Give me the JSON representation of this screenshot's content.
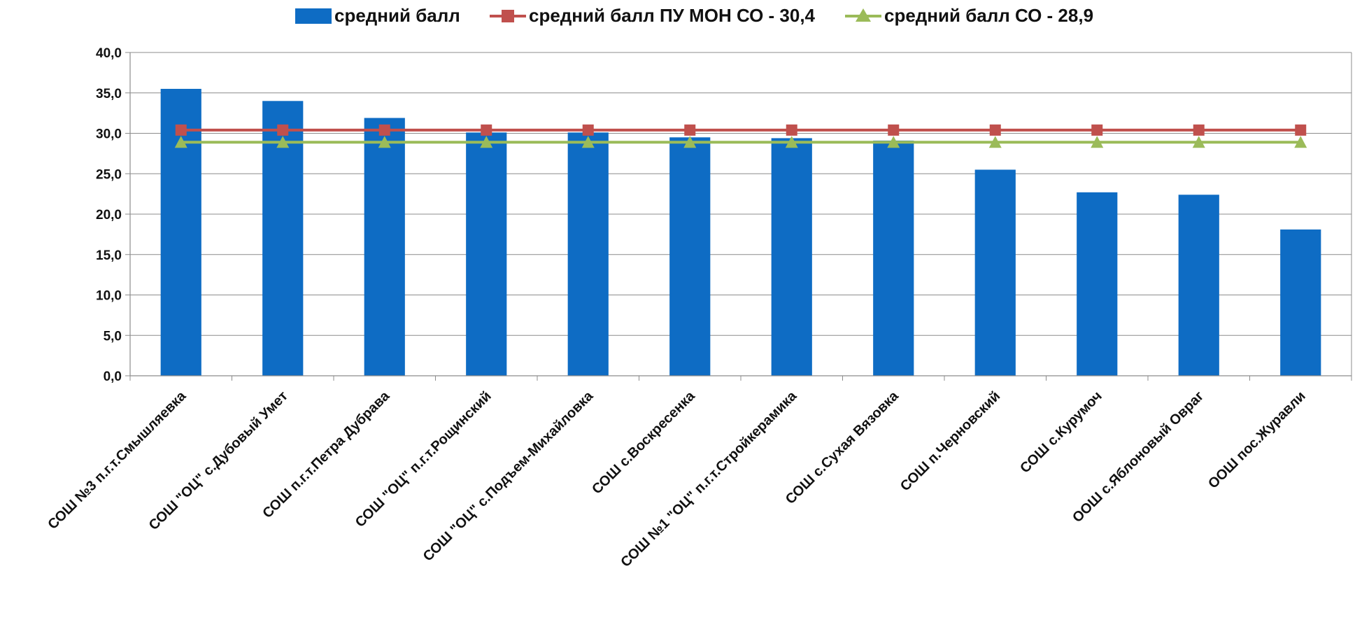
{
  "chart_data": {
    "type": "bar",
    "title": "",
    "xlabel": "",
    "ylabel": "",
    "ylim": [
      0,
      40
    ],
    "yticks": [
      "0,0",
      "5,0",
      "10,0",
      "15,0",
      "20,0",
      "25,0",
      "30,0",
      "35,0",
      "40,0"
    ],
    "grid": true,
    "legend_position": "top",
    "categories": [
      "СОШ №3 п.г.т.Смышляевка",
      "СОШ \"ОЦ\" с.Дубовый Умет",
      "СОШ п.г.т.Петра Дубрава",
      "СОШ \"ОЦ\" п.г.т.Рощинский",
      "СОШ \"ОЦ\" с.Подъем-Михайловка",
      "СОШ с.Воскресенка",
      "СОШ №1 \"ОЦ\" п.г.т.Стройкерамика",
      "СОШ с.Сухая Вязовка",
      "СОШ п.Черновский",
      "СОШ с.Курумоч",
      "ООШ с.Яблоновый Овраг",
      "ООШ пос.Журавли"
    ],
    "series": [
      {
        "name": "средний балл",
        "kind": "bar",
        "color": "#0e6cc4",
        "values": [
          35.5,
          34.0,
          31.9,
          30.1,
          30.1,
          29.5,
          29.4,
          29.1,
          25.5,
          22.7,
          22.4,
          18.1
        ]
      },
      {
        "name": "средний балл ПУ МОН СО - 30,4",
        "kind": "line",
        "marker": "square",
        "color": "#c0504d",
        "values": [
          30.4,
          30.4,
          30.4,
          30.4,
          30.4,
          30.4,
          30.4,
          30.4,
          30.4,
          30.4,
          30.4,
          30.4
        ]
      },
      {
        "name": "средний балл СО - 28,9",
        "kind": "line",
        "marker": "triangle",
        "color": "#9bbb59",
        "values": [
          28.9,
          28.9,
          28.9,
          28.9,
          28.9,
          28.9,
          28.9,
          28.9,
          28.9,
          28.9,
          28.9,
          28.9
        ]
      }
    ]
  }
}
